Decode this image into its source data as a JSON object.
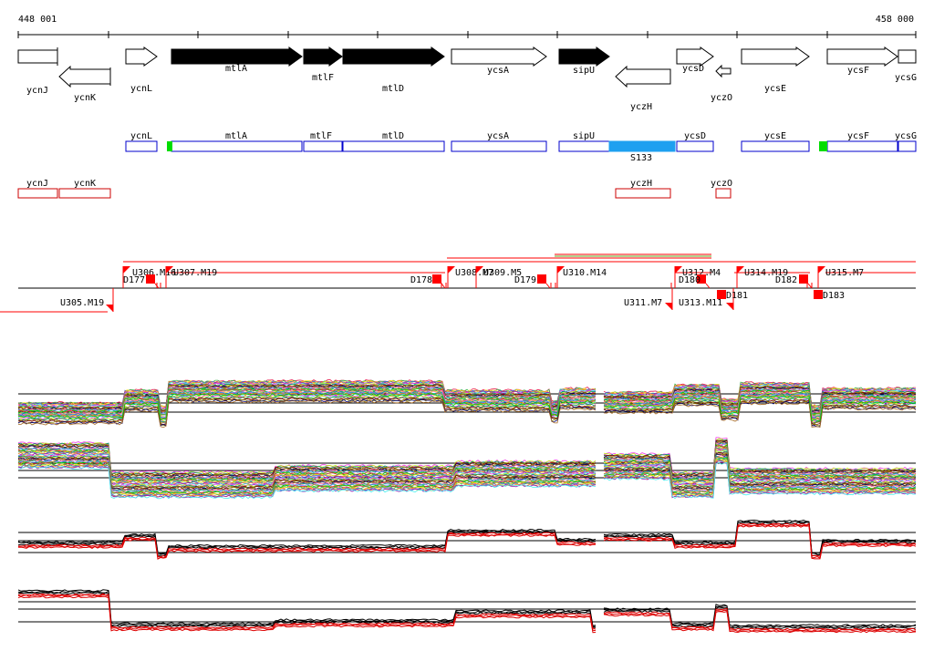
{
  "coordinates": {
    "start": "448 001",
    "end": "458 000"
  },
  "colors": {
    "annotated_gene": "#000000",
    "transcript_box": "#0000cc",
    "operon_box": "#cc0000",
    "segment_fill": "#1ea0f0",
    "start_mark": "#00dd00",
    "tss_marker": "#ff0000"
  },
  "genes": [
    {
      "name": "ycnJ",
      "strand": "+",
      "filled": false
    },
    {
      "name": "ycnK",
      "strand": "-",
      "filled": false
    },
    {
      "name": "ycnL",
      "strand": "+",
      "filled": false
    },
    {
      "name": "mtlA",
      "strand": "+",
      "filled": true
    },
    {
      "name": "mtlF",
      "strand": "+",
      "filled": true
    },
    {
      "name": "mtlD",
      "strand": "+",
      "filled": true
    },
    {
      "name": "ycsA",
      "strand": "+",
      "filled": false
    },
    {
      "name": "sipU",
      "strand": "+",
      "filled": true
    },
    {
      "name": "yczH",
      "strand": "-",
      "filled": false
    },
    {
      "name": "ycsD",
      "strand": "+",
      "filled": false
    },
    {
      "name": "yczO",
      "strand": "-",
      "filled": false
    },
    {
      "name": "ycsE",
      "strand": "+",
      "filled": false
    },
    {
      "name": "ycsF",
      "strand": "+",
      "filled": false
    },
    {
      "name": "ycsG",
      "strand": "+",
      "filled": false
    }
  ],
  "transcripts_plus": [
    {
      "name": "ycnL"
    },
    {
      "name": "mtlA"
    },
    {
      "name": "mtlF"
    },
    {
      "name": "mtlD"
    },
    {
      "name": "ycsA"
    },
    {
      "name": "sipU"
    },
    {
      "name": "S133"
    },
    {
      "name": "ycsD"
    },
    {
      "name": "ycsE"
    },
    {
      "name": "ycsF"
    },
    {
      "name": "ycsG"
    }
  ],
  "transcripts_minus": [
    {
      "name": "ycnJ"
    },
    {
      "name": "ycnK"
    },
    {
      "name": "yczH"
    },
    {
      "name": "yczO"
    }
  ],
  "markers_up": [
    {
      "label": "U306.M16"
    },
    {
      "label": "U307.M19"
    },
    {
      "label": "U308.M7"
    },
    {
      "label": "U309.M5"
    },
    {
      "label": "U310.M14"
    },
    {
      "label": "U312.M4"
    },
    {
      "label": "U314.M19"
    },
    {
      "label": "U315.M7"
    }
  ],
  "markers_down": [
    {
      "label": "D177"
    },
    {
      "label": "D178"
    },
    {
      "label": "D179"
    },
    {
      "label": "D180"
    },
    {
      "label": "D182"
    }
  ],
  "markers_below": [
    {
      "label": "U305.M19"
    },
    {
      "label": "U311.M7"
    },
    {
      "label": "U313.M11"
    },
    {
      "label": "D181"
    },
    {
      "label": "D183"
    }
  ]
}
